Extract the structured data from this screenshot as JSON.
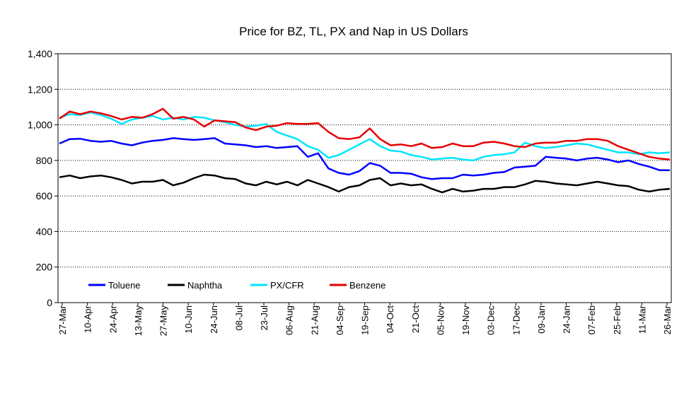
{
  "chart_data": {
    "type": "line",
    "title": "Price for BZ, TL, PX and Nap in US Dollars",
    "xlabel": "",
    "ylabel": "",
    "ylim": [
      0,
      1400
    ],
    "yticks": [
      0,
      200,
      400,
      600,
      800,
      1000,
      1200,
      1400
    ],
    "ytick_labels": [
      "0",
      "200",
      "400",
      "600",
      "800",
      "1,000",
      "1,200",
      "1,400"
    ],
    "x_tick_labels": [
      "27-Mar",
      "10-Apr",
      "24-Apr",
      "13-May",
      "27-May",
      "10-Jun",
      "24-Jun",
      "08-Jul",
      "23-Jul",
      "06-Aug",
      "21-Aug",
      "04-Sep",
      "19-Sep",
      "04-Oct",
      "21-Oct",
      "05-Nov",
      "19-Nov",
      "03-Dec",
      "17-Dec",
      "09-Jan",
      "24-Jan",
      "07-Feb",
      "25-Feb",
      "11-Mar",
      "26-Mar"
    ],
    "grid": "horizontal dotted",
    "legend_position": "bottom-left inside plot",
    "series": [
      {
        "name": "Toluene",
        "color": "#0000ff",
        "values": [
          895,
          920,
          922,
          910,
          905,
          910,
          895,
          885,
          900,
          910,
          915,
          925,
          920,
          915,
          920,
          925,
          895,
          890,
          885,
          875,
          880,
          870,
          875,
          880,
          820,
          840,
          755,
          730,
          720,
          740,
          785,
          770,
          730,
          730,
          725,
          705,
          695,
          700,
          700,
          720,
          715,
          720,
          730,
          735,
          760,
          765,
          770,
          820,
          815,
          810,
          800,
          810,
          815,
          805,
          790,
          800,
          780,
          765,
          745,
          745
        ]
      },
      {
        "name": "Naphtha",
        "color": "#000000",
        "values": [
          705,
          715,
          700,
          710,
          715,
          705,
          690,
          670,
          680,
          680,
          690,
          660,
          675,
          700,
          720,
          715,
          700,
          695,
          670,
          660,
          680,
          665,
          680,
          660,
          690,
          670,
          650,
          625,
          650,
          660,
          690,
          700,
          660,
          670,
          660,
          665,
          640,
          620,
          640,
          625,
          630,
          640,
          640,
          650,
          650,
          665,
          685,
          680,
          670,
          665,
          660,
          670,
          680,
          670,
          660,
          655,
          635,
          625,
          635,
          640
        ]
      },
      {
        "name": "PX/CFR",
        "color": "#00e5ff",
        "values": [
          1040,
          1060,
          1055,
          1070,
          1055,
          1035,
          1005,
          1030,
          1040,
          1050,
          1030,
          1040,
          1030,
          1045,
          1040,
          1025,
          1015,
          1000,
          990,
          995,
          1005,
          960,
          940,
          920,
          880,
          860,
          815,
          830,
          860,
          890,
          920,
          880,
          855,
          850,
          830,
          820,
          805,
          810,
          815,
          805,
          800,
          820,
          830,
          835,
          845,
          900,
          880,
          870,
          875,
          885,
          895,
          890,
          875,
          860,
          845,
          845,
          835,
          845,
          840,
          845
        ]
      },
      {
        "name": "Benzene",
        "color": "#e60000",
        "values": [
          1035,
          1075,
          1060,
          1075,
          1065,
          1050,
          1030,
          1045,
          1040,
          1060,
          1090,
          1035,
          1045,
          1030,
          990,
          1025,
          1020,
          1015,
          985,
          970,
          990,
          995,
          1010,
          1005,
          1005,
          1010,
          960,
          925,
          920,
          930,
          980,
          920,
          885,
          890,
          880,
          895,
          870,
          875,
          895,
          880,
          880,
          900,
          905,
          895,
          880,
          875,
          895,
          900,
          900,
          910,
          910,
          920,
          920,
          910,
          880,
          860,
          840,
          820,
          810,
          805
        ]
      }
    ]
  }
}
